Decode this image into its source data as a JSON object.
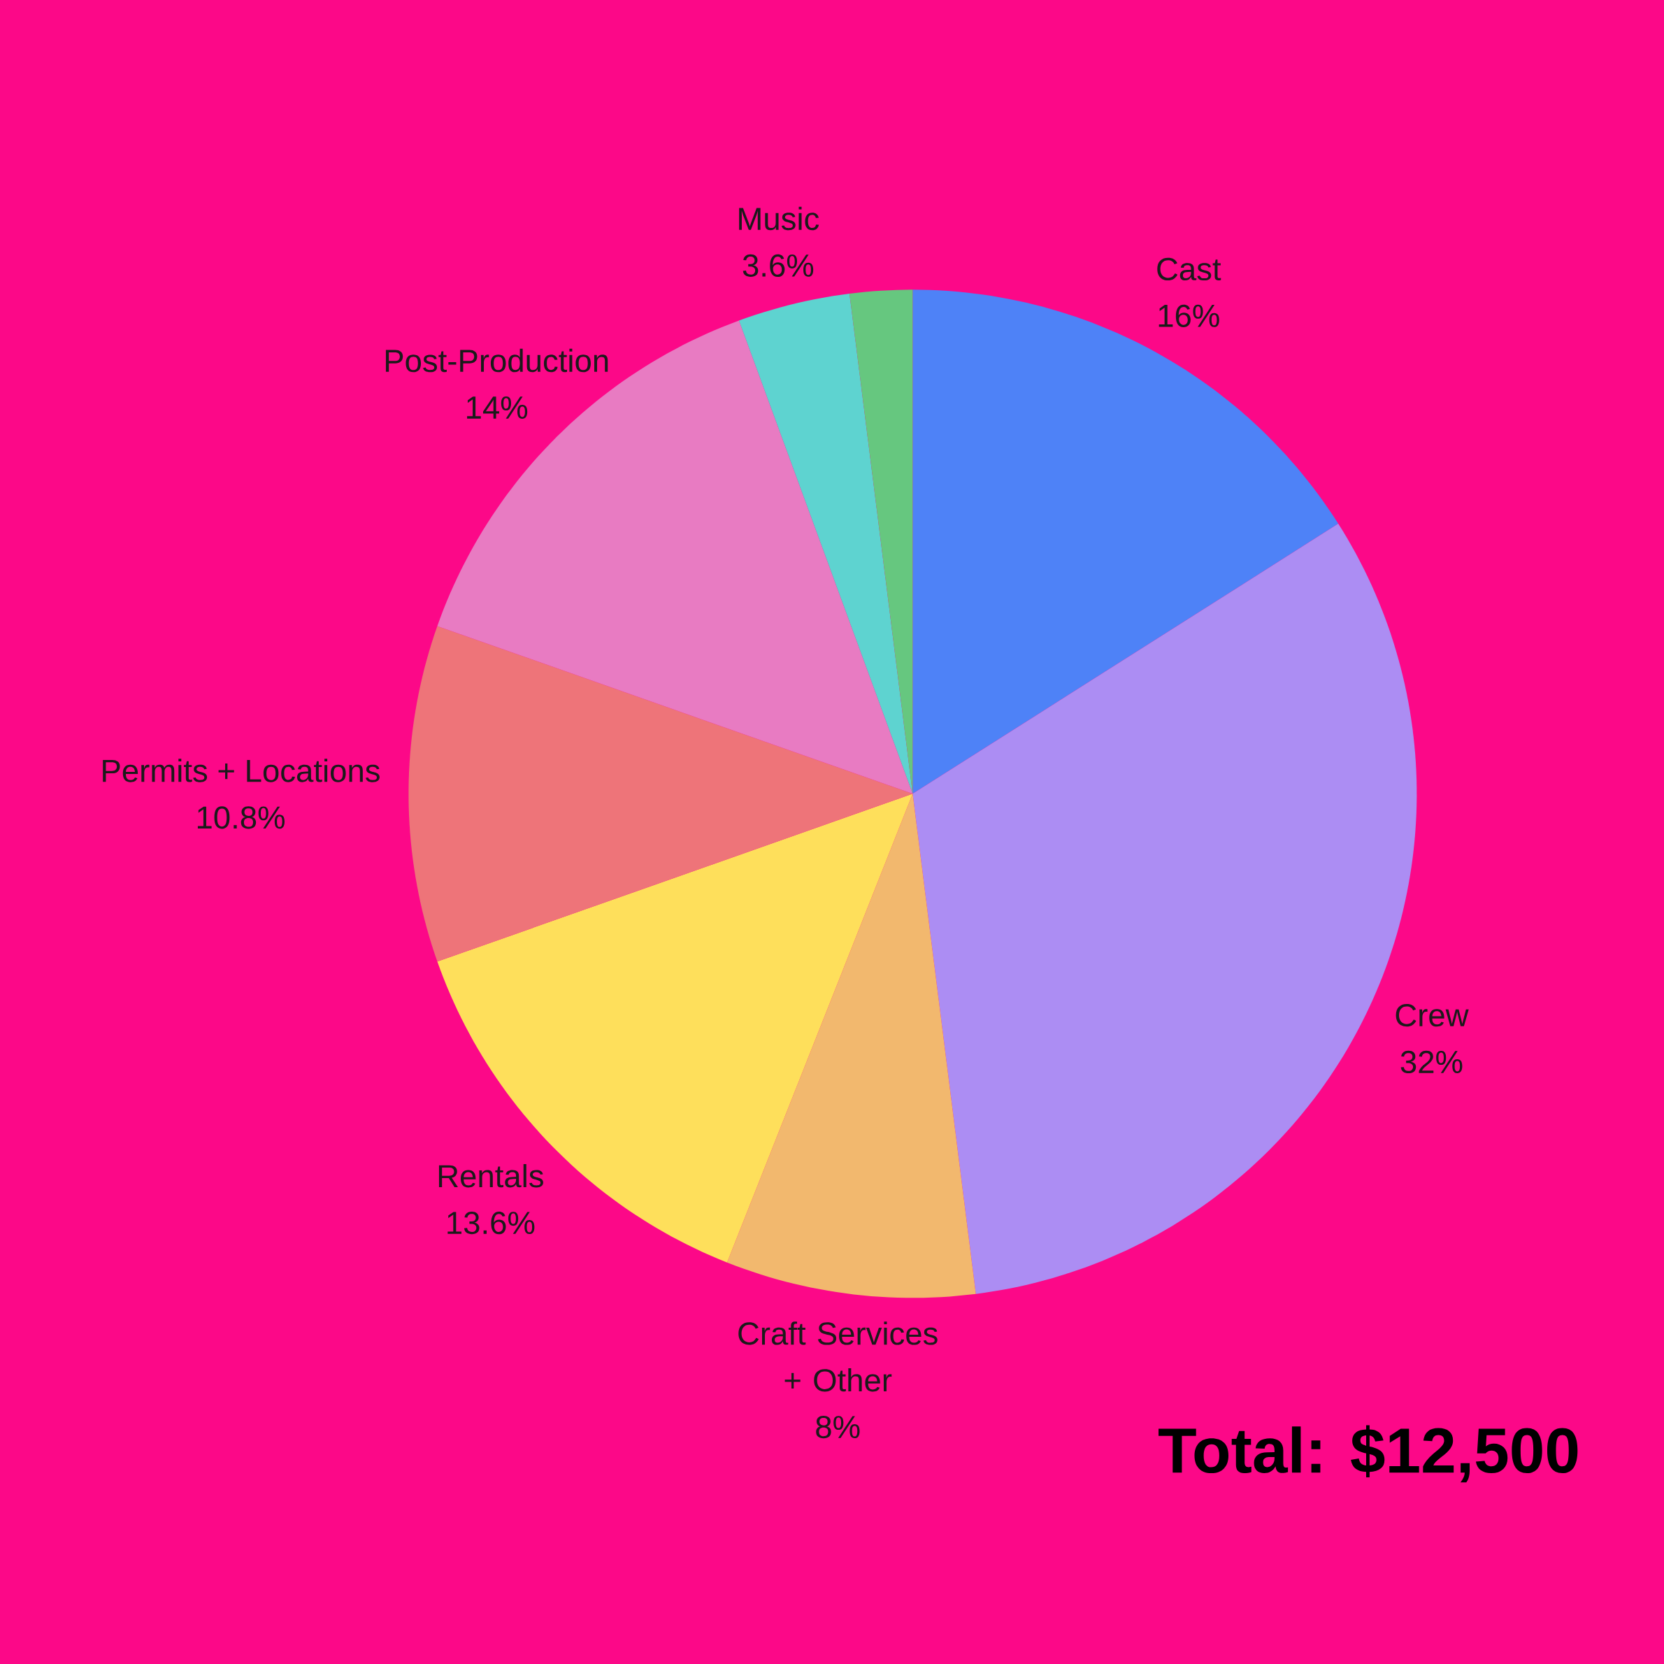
{
  "chart_data": {
    "type": "pie",
    "categories": [
      "Cast",
      "Crew",
      "Craft Services + Other",
      "Rentals",
      "Permits + Locations",
      "Post-Production",
      "Music",
      null
    ],
    "values": [
      16,
      32,
      8,
      13.6,
      10.8,
      14,
      3.6,
      2
    ],
    "value_labels": [
      "16%",
      "32%",
      "8%",
      "13.6%",
      "10.8%",
      "14%",
      "3.6%",
      null
    ],
    "colors": [
      "#4e82f7",
      "#ac8df3",
      "#f2b86e",
      "#fedf5b",
      "#ee7479",
      "#e87bc2",
      "#5ed3d0",
      "#66c77f"
    ],
    "annotations": [
      "Total: $12,500"
    ]
  }
}
